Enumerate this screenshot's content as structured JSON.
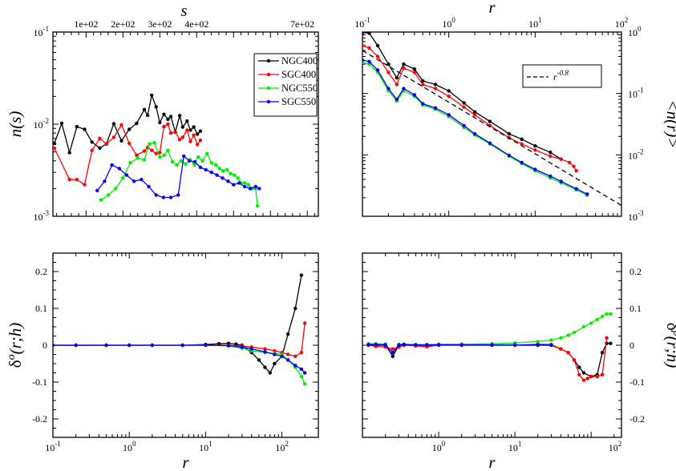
{
  "chart_data": [
    {
      "id": "ns",
      "type": "line",
      "xscale": "linear",
      "yscale": "log",
      "xlim": [
        10,
        730
      ],
      "ylim": [
        0.001,
        0.1
      ],
      "xlabel": "s",
      "ylabel": "n(s)",
      "x_axis_side": "top",
      "xtick_labels": [
        "1e+02",
        "2e+02",
        "3e+02",
        "4e+02",
        "7e+02"
      ],
      "ytick_labels": [
        "10",
        "10",
        "10"
      ],
      "ytick_exponents": [
        "-3",
        "-2",
        "-1"
      ],
      "legend": {
        "position": "top-right",
        "entries": [
          "NGC400",
          "SGC400",
          "NGC550",
          "SGC550"
        ]
      },
      "series": [
        {
          "name": "NGC400",
          "color": "#000000",
          "x": [
            14,
            34,
            55,
            75,
            96,
            116,
            137,
            155,
            175,
            196,
            217,
            237,
            258,
            267,
            278,
            290,
            300,
            311,
            322,
            330,
            342,
            354,
            362,
            374,
            383,
            392,
            402,
            410
          ],
          "y": [
            0.0062,
            0.0102,
            0.0049,
            0.0094,
            0.0088,
            0.0064,
            0.0055,
            0.0061,
            0.0101,
            0.0066,
            0.0088,
            0.0102,
            0.0144,
            0.0125,
            0.0206,
            0.0154,
            0.0104,
            0.0128,
            0.0113,
            0.0121,
            0.0082,
            0.0124,
            0.0093,
            0.0108,
            0.0086,
            0.0093,
            0.0078,
            0.0084
          ]
        },
        {
          "name": "SGC400",
          "color": "#ff0000",
          "x": [
            14,
            55,
            75,
            96,
            116,
            137,
            155,
            175,
            196,
            217,
            237,
            258,
            267,
            278,
            290,
            300,
            311,
            322,
            330,
            342,
            354,
            362,
            374,
            383,
            392,
            402,
            410
          ],
          "y": [
            0.0055,
            0.0025,
            0.0025,
            0.0022,
            0.0052,
            0.007,
            0.0061,
            0.0072,
            0.0098,
            0.0062,
            0.0046,
            0.0051,
            0.0056,
            0.0052,
            0.0048,
            0.0049,
            0.0094,
            0.01,
            0.008,
            0.0082,
            0.0068,
            0.0072,
            0.0086,
            0.0065,
            0.0076,
            0.006,
            0.0067
          ]
        },
        {
          "name": "NGC550",
          "color": "#00ee00",
          "x": [
            140,
            160,
            180,
            200,
            220,
            240,
            258,
            272,
            285,
            300,
            312,
            322,
            334,
            346,
            358,
            370,
            382,
            394,
            404,
            416,
            428,
            440,
            452,
            462,
            472,
            482,
            492,
            502,
            512,
            520,
            530,
            540,
            550,
            560,
            565
          ],
          "y": [
            0.0015,
            0.0017,
            0.002,
            0.0026,
            0.0038,
            0.0043,
            0.0041,
            0.0061,
            0.0063,
            0.0044,
            0.0046,
            0.0052,
            0.0039,
            0.0036,
            0.004,
            0.0037,
            0.0041,
            0.0036,
            0.0044,
            0.004,
            0.0048,
            0.0038,
            0.0036,
            0.0033,
            0.0031,
            0.0032,
            0.0029,
            0.0028,
            0.0026,
            0.0023,
            0.0023,
            0.0022,
            0.002,
            0.002,
            0.0013
          ]
        },
        {
          "name": "SGC550",
          "color": "#0000ff",
          "x": [
            130,
            150,
            170,
            190,
            210,
            230,
            250,
            270,
            290,
            310,
            330,
            350,
            365,
            380,
            395,
            410,
            425,
            440,
            455,
            470,
            485,
            500,
            515,
            530,
            545,
            560,
            570
          ],
          "y": [
            0.0019,
            0.0024,
            0.0036,
            0.0033,
            0.0028,
            0.0024,
            0.0025,
            0.0021,
            0.0017,
            0.0016,
            0.0016,
            0.0017,
            0.0045,
            0.004,
            0.0039,
            0.0034,
            0.0032,
            0.003,
            0.0028,
            0.0026,
            0.0024,
            0.0022,
            0.0023,
            0.0021,
            0.002,
            0.0021,
            0.002
          ]
        }
      ]
    },
    {
      "id": "nr",
      "type": "line",
      "xscale": "log",
      "yscale": "log",
      "xlim": [
        0.1,
        100
      ],
      "ylim": [
        0.001,
        1
      ],
      "xlabel": "r",
      "ylabel": "<n(r)>",
      "x_axis_side": "top",
      "y_axis_side": "right",
      "xtick_labels": [
        "10",
        "10",
        "10",
        "10"
      ],
      "xtick_exponents": [
        "-1",
        "0",
        "1",
        "2"
      ],
      "ytick_labels": [
        "10",
        "10",
        "10",
        "10"
      ],
      "ytick_exponents": [
        "-3",
        "-2",
        "-1",
        "0"
      ],
      "legend": {
        "position": "top-right",
        "entries": [
          "r"
        ],
        "entry_exponents": [
          "-0.8"
        ]
      },
      "series": [
        {
          "name": "NGC400",
          "color": "#000000",
          "x": [
            0.1,
            0.12,
            0.15,
            0.2,
            0.25,
            0.3,
            0.4,
            0.5,
            0.7,
            1,
            1.5,
            2,
            3,
            5,
            7,
            10,
            15,
            20
          ],
          "y": [
            0.98,
            0.96,
            0.6,
            0.3,
            0.18,
            0.3,
            0.25,
            0.16,
            0.14,
            0.11,
            0.07,
            0.05,
            0.035,
            0.022,
            0.018,
            0.014,
            0.011,
            0.0085
          ]
        },
        {
          "name": "SGC400",
          "color": "#ff0000",
          "x": [
            0.1,
            0.12,
            0.15,
            0.2,
            0.25,
            0.3,
            0.4,
            0.5,
            0.7,
            1,
            1.5,
            2,
            3,
            5,
            7,
            10,
            15,
            20,
            25,
            28,
            30
          ],
          "y": [
            0.6,
            0.55,
            0.4,
            0.22,
            0.14,
            0.26,
            0.22,
            0.14,
            0.12,
            0.09,
            0.06,
            0.045,
            0.03,
            0.019,
            0.015,
            0.012,
            0.0095,
            0.0085,
            0.0075,
            0.0065,
            0.0055
          ]
        },
        {
          "name": "NGC550",
          "color": "#00ee00",
          "x": [
            0.1,
            0.12,
            0.15,
            0.2,
            0.25,
            0.3,
            0.4,
            0.5,
            0.7,
            1,
            1.5,
            2,
            3,
            5,
            7,
            10,
            15,
            20,
            30,
            40
          ],
          "y": [
            0.32,
            0.3,
            0.22,
            0.11,
            0.075,
            0.11,
            0.09,
            0.065,
            0.055,
            0.042,
            0.028,
            0.021,
            0.015,
            0.0095,
            0.0072,
            0.0055,
            0.0042,
            0.0035,
            0.0027,
            0.0022
          ]
        },
        {
          "name": "SGC550",
          "color": "#0000ff",
          "x": [
            0.1,
            0.12,
            0.15,
            0.2,
            0.25,
            0.3,
            0.4,
            0.5,
            0.7,
            1,
            1.5,
            2,
            3,
            5,
            7,
            10,
            15,
            20,
            30,
            40
          ],
          "y": [
            0.35,
            0.33,
            0.24,
            0.12,
            0.08,
            0.12,
            0.095,
            0.068,
            0.058,
            0.045,
            0.03,
            0.022,
            0.0155,
            0.0098,
            0.0075,
            0.0058,
            0.0045,
            0.0037,
            0.0028,
            0.0023
          ]
        },
        {
          "name": "r^-0.8",
          "color": "#000000",
          "dashed": true,
          "x": [
            0.1,
            100
          ],
          "y": [
            0.5,
            0.0015
          ]
        }
      ]
    },
    {
      "id": "delta_o",
      "type": "line",
      "xscale": "log",
      "yscale": "linear",
      "xlim": [
        0.1,
        300
      ],
      "ylim": [
        -0.25,
        0.25
      ],
      "xlabel": "r",
      "ylabel": "δo(r;h)",
      "ylabel_parts": [
        "δ",
        "o",
        "(r;h)"
      ],
      "xtick_labels": [
        "10",
        "10",
        "10",
        "10"
      ],
      "xtick_exponents": [
        "-1",
        "0",
        "1",
        "2"
      ],
      "yticks": [
        -0.2,
        -0.1,
        0,
        0.1,
        0.2
      ],
      "ytick_labels": [
        "-0.2",
        "-0.1",
        "0",
        "0.1",
        "0.2"
      ],
      "series": [
        {
          "name": "NGC400",
          "color": "#000000",
          "x": [
            0.1,
            0.2,
            0.5,
            1,
            2,
            5,
            10,
            15,
            20,
            25,
            30,
            40,
            50,
            60,
            70,
            80,
            100,
            120,
            150,
            180
          ],
          "y": [
            0,
            0,
            0,
            0,
            0,
            0,
            0.002,
            0.004,
            0.005,
            0.003,
            0,
            -0.02,
            -0.04,
            -0.06,
            -0.075,
            -0.05,
            -0.03,
            0.03,
            0.1,
            0.19
          ]
        },
        {
          "name": "SGC400",
          "color": "#ff0000",
          "x": [
            0.1,
            0.2,
            0.5,
            1,
            2,
            5,
            10,
            20,
            30,
            40,
            60,
            80,
            100,
            120,
            150,
            180,
            200
          ],
          "y": [
            0,
            0,
            0,
            0,
            0,
            0,
            0,
            0,
            -0.002,
            -0.005,
            -0.01,
            -0.015,
            -0.02,
            -0.025,
            -0.03,
            -0.02,
            0.06
          ]
        },
        {
          "name": "NGC550",
          "color": "#00ee00",
          "x": [
            0.1,
            0.2,
            0.5,
            1,
            2,
            5,
            10,
            20,
            30,
            40,
            60,
            80,
            100,
            120,
            150,
            180,
            200
          ],
          "y": [
            0,
            0,
            0,
            0,
            0,
            0,
            0,
            -0.002,
            -0.008,
            -0.015,
            -0.02,
            -0.022,
            -0.025,
            -0.04,
            -0.06,
            -0.085,
            -0.105
          ]
        },
        {
          "name": "SGC550",
          "color": "#0000ff",
          "x": [
            0.1,
            0.2,
            0.5,
            1,
            2,
            5,
            10,
            20,
            30,
            40,
            60,
            80,
            100,
            120,
            150,
            180,
            200
          ],
          "y": [
            0,
            0,
            0,
            0,
            0,
            0,
            0,
            -0.001,
            -0.005,
            -0.01,
            -0.018,
            -0.025,
            -0.03,
            -0.04,
            -0.055,
            -0.065,
            -0.075
          ]
        }
      ]
    },
    {
      "id": "delta_p",
      "type": "line",
      "xscale": "log",
      "yscale": "linear",
      "xlim": [
        0.1,
        250
      ],
      "ylim": [
        -0.25,
        0.25
      ],
      "xlabel": "r",
      "ylabel": "δp(r;h)",
      "ylabel_parts": [
        "δ",
        "p",
        "(r;h)"
      ],
      "y_axis_side": "right",
      "xtick_labels": [
        "10",
        "10"
      ],
      "xtick_exponents": [
        "0",
        "1"
      ],
      "xtick_labels_at": [
        1,
        10
      ],
      "xtick_label_extra": [
        "10"
      ],
      "xtick_label_extra_exponent": [
        "2"
      ],
      "yticks": [
        -0.2,
        -0.1,
        0,
        0.1,
        0.2
      ],
      "ytick_labels": [
        "-0.2",
        "-0.1",
        "0",
        "0.1",
        "0.2"
      ],
      "series": [
        {
          "name": "NGC400",
          "color": "#000000",
          "x": [
            0.12,
            0.15,
            0.2,
            0.25,
            0.3,
            0.35,
            0.5,
            0.7,
            1,
            2,
            5,
            10,
            20,
            30,
            40,
            50,
            60,
            70,
            80,
            100,
            120,
            140,
            160,
            180
          ],
          "y": [
            0,
            0,
            0,
            -0.03,
            0,
            0,
            0,
            0,
            0,
            0,
            0,
            0,
            0,
            0,
            -0.01,
            -0.02,
            -0.04,
            -0.06,
            -0.075,
            -0.085,
            -0.08,
            -0.02,
            0.005,
            0.005
          ]
        },
        {
          "name": "SGC400",
          "color": "#ff0000",
          "x": [
            0.12,
            0.15,
            0.2,
            0.25,
            0.3,
            0.35,
            0.5,
            0.7,
            1,
            2,
            5,
            10,
            20,
            30,
            40,
            50,
            60,
            70,
            80,
            90,
            100,
            120,
            140,
            160
          ],
          "y": [
            0,
            -0.003,
            -0.005,
            -0.01,
            -0.005,
            0,
            -0.002,
            -0.004,
            0,
            0,
            0,
            0,
            0.003,
            0.002,
            -0.01,
            -0.02,
            -0.04,
            -0.08,
            -0.095,
            -0.09,
            -0.085,
            -0.085,
            -0.08,
            0.02
          ]
        },
        {
          "name": "NGC550",
          "color": "#00ee00",
          "x": [
            0.12,
            0.15,
            0.2,
            0.25,
            0.3,
            0.35,
            0.5,
            0.7,
            1,
            2,
            5,
            10,
            20,
            30,
            40,
            50,
            60,
            80,
            100,
            120,
            140,
            160,
            180
          ],
          "y": [
            0.004,
            0.004,
            0.003,
            -0.02,
            0.002,
            0.003,
            0.002,
            0.002,
            0.003,
            0.003,
            0.004,
            0.006,
            0.01,
            0.014,
            0.02,
            0.027,
            0.035,
            0.05,
            0.06,
            0.07,
            0.078,
            0.085,
            0.085
          ]
        },
        {
          "name": "SGC550",
          "color": "#0000ff",
          "x": [
            0.12,
            0.15,
            0.2,
            0.25,
            0.3,
            0.35,
            0.5,
            0.7,
            1,
            2,
            5,
            10,
            20,
            30
          ],
          "y": [
            0.002,
            0.002,
            0.001,
            -0.02,
            0.001,
            0.002,
            0.001,
            0.001,
            0.001,
            0.001,
            0.001,
            0.001,
            0.001,
            0.001
          ]
        }
      ]
    }
  ]
}
